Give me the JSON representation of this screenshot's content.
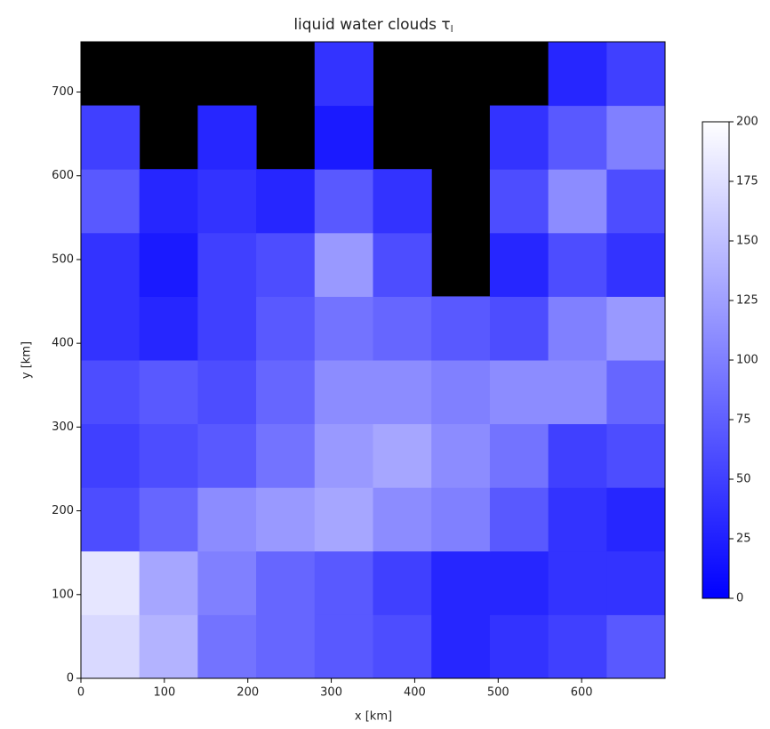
{
  "chart_data": {
    "type": "heatmap",
    "title": "liquid water clouds τ",
    "title_subscript": "l",
    "x_label": "x [km]",
    "y_label": "y [km]",
    "xbins": [
      0,
      70,
      140,
      210,
      280,
      350,
      420,
      490,
      560,
      630,
      700
    ],
    "ybins": [
      0,
      76,
      152,
      228,
      304,
      380,
      456,
      532,
      608,
      684,
      760
    ],
    "values": [
      [
        170,
        140,
        90,
        80,
        70,
        60,
        30,
        40,
        50,
        70
      ],
      [
        180,
        130,
        100,
        80,
        70,
        50,
        30,
        30,
        40,
        40
      ],
      [
        60,
        80,
        110,
        120,
        130,
        110,
        100,
        70,
        40,
        30
      ],
      [
        50,
        60,
        70,
        90,
        120,
        130,
        110,
        90,
        50,
        60
      ],
      [
        60,
        70,
        60,
        80,
        110,
        110,
        100,
        110,
        110,
        80
      ],
      [
        40,
        30,
        50,
        70,
        90,
        80,
        70,
        60,
        100,
        120
      ],
      [
        40,
        20,
        50,
        60,
        120,
        60,
        null,
        30,
        60,
        40
      ],
      [
        70,
        30,
        40,
        30,
        70,
        40,
        null,
        60,
        110,
        60
      ],
      [
        50,
        null,
        30,
        null,
        20,
        null,
        null,
        40,
        70,
        100
      ],
      [
        null,
        null,
        null,
        null,
        40,
        null,
        null,
        null,
        30,
        50
      ]
    ],
    "xlim": [
      0,
      700
    ],
    "ylim": [
      0,
      760
    ],
    "xticks": [
      0,
      100,
      200,
      300,
      400,
      500,
      600
    ],
    "yticks": [
      0,
      100,
      200,
      300,
      400,
      500,
      600,
      700
    ],
    "background": "#000000",
    "colorbar": {
      "lim": [
        0,
        200
      ],
      "ticks": [
        0,
        25,
        50,
        75,
        100,
        125,
        150,
        175,
        200
      ],
      "colors": [
        "#0000ff",
        "#ffffff"
      ]
    }
  }
}
